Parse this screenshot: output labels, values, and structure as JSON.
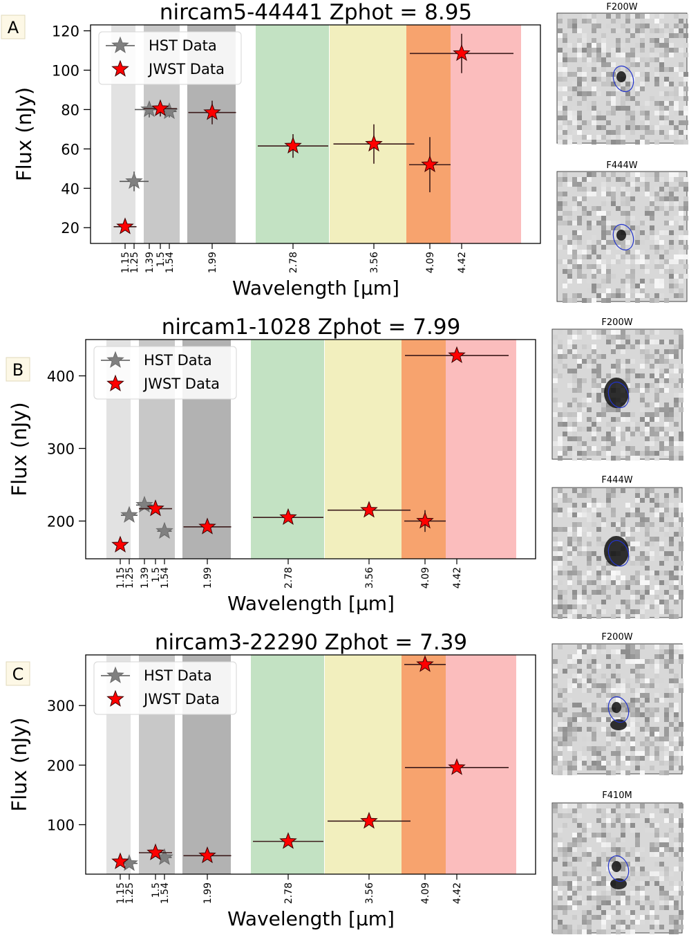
{
  "colors": {
    "hst_marker": "#808080",
    "jwst_marker": "#ff0000",
    "errorbar": "#3b1a1a",
    "band_light_gray": "#e2e2e2",
    "band_mid_gray": "#c8c8c8",
    "band_dark_gray": "#b2b2b2",
    "band_green": "#c3e2c3",
    "band_yellow": "#f2efbe",
    "band_orange": "#f7a36e",
    "band_red": "#fbbdbd",
    "ellipse": "#2233cc"
  },
  "chart_data": [
    {
      "type": "scatter",
      "panel_label": "A",
      "title": "nircam5-44441 Zphot = 8.95",
      "xlabel": "Wavelength [µm]",
      "ylabel": "Flux (nJy)",
      "ylim": [
        12,
        123
      ],
      "yticks": [
        20,
        40,
        60,
        80,
        100,
        120
      ],
      "xticks": [
        "1.15",
        "1.25",
        "1.39",
        "1.5",
        "1.54",
        "1.99",
        "2.78",
        "3.56",
        "4.09",
        "4.42"
      ],
      "legend": [
        "HST Data",
        "JWST Data"
      ],
      "legend_position": "upper-left",
      "series": [
        {
          "name": "HST Data",
          "points": [
            {
              "band": "1.25",
              "flux": 43.5,
              "xerr": 0.14,
              "yerr": 5
            },
            {
              "band": "1.39",
              "flux": 80,
              "xerr": 0.14,
              "yerr": 4
            },
            {
              "band": "1.54",
              "flux": 79,
              "xerr": 0.07,
              "yerr": 3
            }
          ]
        },
        {
          "name": "JWST Data",
          "points": [
            {
              "band": "1.15",
              "flux": 20.5,
              "xerr": 0.11,
              "yerr": 1.5
            },
            {
              "band": "1.5",
              "flux": 80.5,
              "xerr": 0.16,
              "yerr": 4
            },
            {
              "band": "1.99",
              "flux": 78.5,
              "xerr": 0.23,
              "yerr": 6
            },
            {
              "band": "2.78",
              "flux": 61.5,
              "xerr": 0.34,
              "yerr": 6
            },
            {
              "band": "3.56",
              "flux": 62.5,
              "xerr": 0.39,
              "yerr": 10
            },
            {
              "band": "4.09",
              "flux": 52,
              "xerr": 0.2,
              "yerr": 14
            },
            {
              "band": "4.42",
              "flux": 108.5,
              "xerr": 0.5,
              "yerr": 10
            }
          ]
        }
      ],
      "cutouts": [
        "F200W",
        "F444W"
      ]
    },
    {
      "type": "scatter",
      "panel_label": "B",
      "title": "nircam1-1028 Zphot = 7.99",
      "xlabel": "Wavelength [µm]",
      "ylabel": "Flux (nJy)",
      "ylim": [
        148,
        450
      ],
      "yticks": [
        200,
        300,
        400
      ],
      "xticks": [
        "1.15",
        "1.25",
        "1.39",
        "1.5",
        "1.54",
        "1.99",
        "2.78",
        "3.56",
        "4.09",
        "4.42"
      ],
      "legend": [
        "HST Data",
        "JWST Data"
      ],
      "legend_position": "upper-left",
      "series": [
        {
          "name": "HST Data",
          "points": [
            {
              "band": "1.25",
              "flux": 208,
              "xerr": 0.08,
              "yerr": 3
            },
            {
              "band": "1.39",
              "flux": 222,
              "xerr": 0.08,
              "yerr": 4
            },
            {
              "band": "1.54",
              "flux": 186,
              "xerr": 0.07,
              "yerr": 3
            }
          ]
        },
        {
          "name": "JWST Data",
          "points": [
            {
              "band": "1.15",
              "flux": 167,
              "xerr": 0.05,
              "yerr": 3
            },
            {
              "band": "1.5",
              "flux": 217,
              "xerr": 0.16,
              "yerr": 4
            },
            {
              "band": "1.99",
              "flux": 192,
              "xerr": 0.23,
              "yerr": 3
            },
            {
              "band": "2.78",
              "flux": 205,
              "xerr": 0.34,
              "yerr": 3
            },
            {
              "band": "3.56",
              "flux": 215,
              "xerr": 0.4,
              "yerr": 4
            },
            {
              "band": "4.09",
              "flux": 200,
              "xerr": 0.2,
              "yerr": 15
            },
            {
              "band": "4.42",
              "flux": 428,
              "xerr": 0.5,
              "yerr": 4
            }
          ]
        }
      ],
      "cutouts": [
        "F200W",
        "F444W"
      ]
    },
    {
      "type": "scatter",
      "panel_label": "C",
      "title": "nircam3-22290 Zphot = 7.39",
      "xlabel": "Wavelength [µm]",
      "ylabel": "Flux (nJy)",
      "ylim": [
        17,
        385
      ],
      "yticks": [
        100,
        200,
        300
      ],
      "xticks": [
        "1.15",
        "1.25",
        "1.5",
        "1.54",
        "1.99",
        "2.78",
        "3.56",
        "4.09",
        "4.42"
      ],
      "legend": [
        "HST Data",
        "JWST Data"
      ],
      "legend_position": "upper-left",
      "series": [
        {
          "name": "HST Data",
          "points": [
            {
              "band": "1.25",
              "flux": 35,
              "xerr": 0.08,
              "yerr": 3
            },
            {
              "band": "1.54",
              "flux": 45,
              "xerr": 0.07,
              "yerr": 3
            }
          ]
        },
        {
          "name": "JWST Data",
          "points": [
            {
              "band": "1.15",
              "flux": 38,
              "xerr": 0.05,
              "yerr": 3
            },
            {
              "band": "1.5",
              "flux": 53,
              "xerr": 0.16,
              "yerr": 3
            },
            {
              "band": "1.99",
              "flux": 48,
              "xerr": 0.23,
              "yerr": 3
            },
            {
              "band": "2.78",
              "flux": 72,
              "xerr": 0.34,
              "yerr": 3
            },
            {
              "band": "3.56",
              "flux": 106,
              "xerr": 0.4,
              "yerr": 3
            },
            {
              "band": "4.09",
              "flux": 369,
              "xerr": 0.2,
              "yerr": 4
            },
            {
              "band": "4.42",
              "flux": 196,
              "xerr": 0.5,
              "yerr": 4
            }
          ]
        }
      ],
      "cutouts": [
        "F200W",
        "F410M"
      ]
    }
  ]
}
